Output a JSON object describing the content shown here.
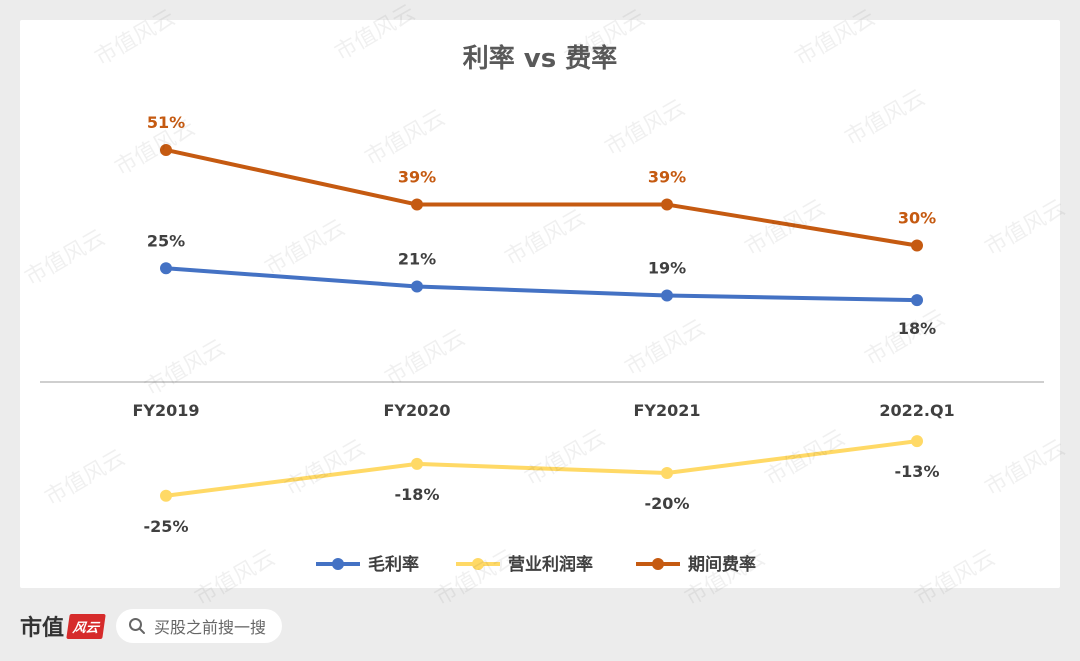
{
  "watermark_text": "市值风云",
  "footer": {
    "brand_text": "市值",
    "brand_seal_text": "风云",
    "search_placeholder": "买股之前搜一搜"
  },
  "colors": {
    "gross": "#4472c4",
    "operating": "#ffd966",
    "expense": "#c55a11",
    "axis": "#bfbfbf",
    "label_dark": "#404040"
  },
  "chart_data": {
    "type": "line",
    "title": "利率 vs 费率",
    "categories": [
      "FY2019",
      "FY2020",
      "FY2021",
      "2022.Q1"
    ],
    "ylim": [
      -30,
      55
    ],
    "grid": false,
    "legend_position": "bottom",
    "series": [
      {
        "name": "毛利率",
        "values": [
          25,
          21,
          19,
          18
        ],
        "labels": [
          "25%",
          "21%",
          "19%",
          "18%"
        ],
        "color": "#4472c4"
      },
      {
        "name": "营业利润率",
        "values": [
          -25,
          -18,
          -20,
          -13
        ],
        "labels": [
          "-25%",
          "-18%",
          "-20%",
          "-13%"
        ],
        "color": "#ffd966"
      },
      {
        "name": "期间费率",
        "values": [
          51,
          39,
          39,
          30
        ],
        "labels": [
          "51%",
          "39%",
          "39%",
          "30%"
        ],
        "color": "#c55a11"
      }
    ]
  }
}
